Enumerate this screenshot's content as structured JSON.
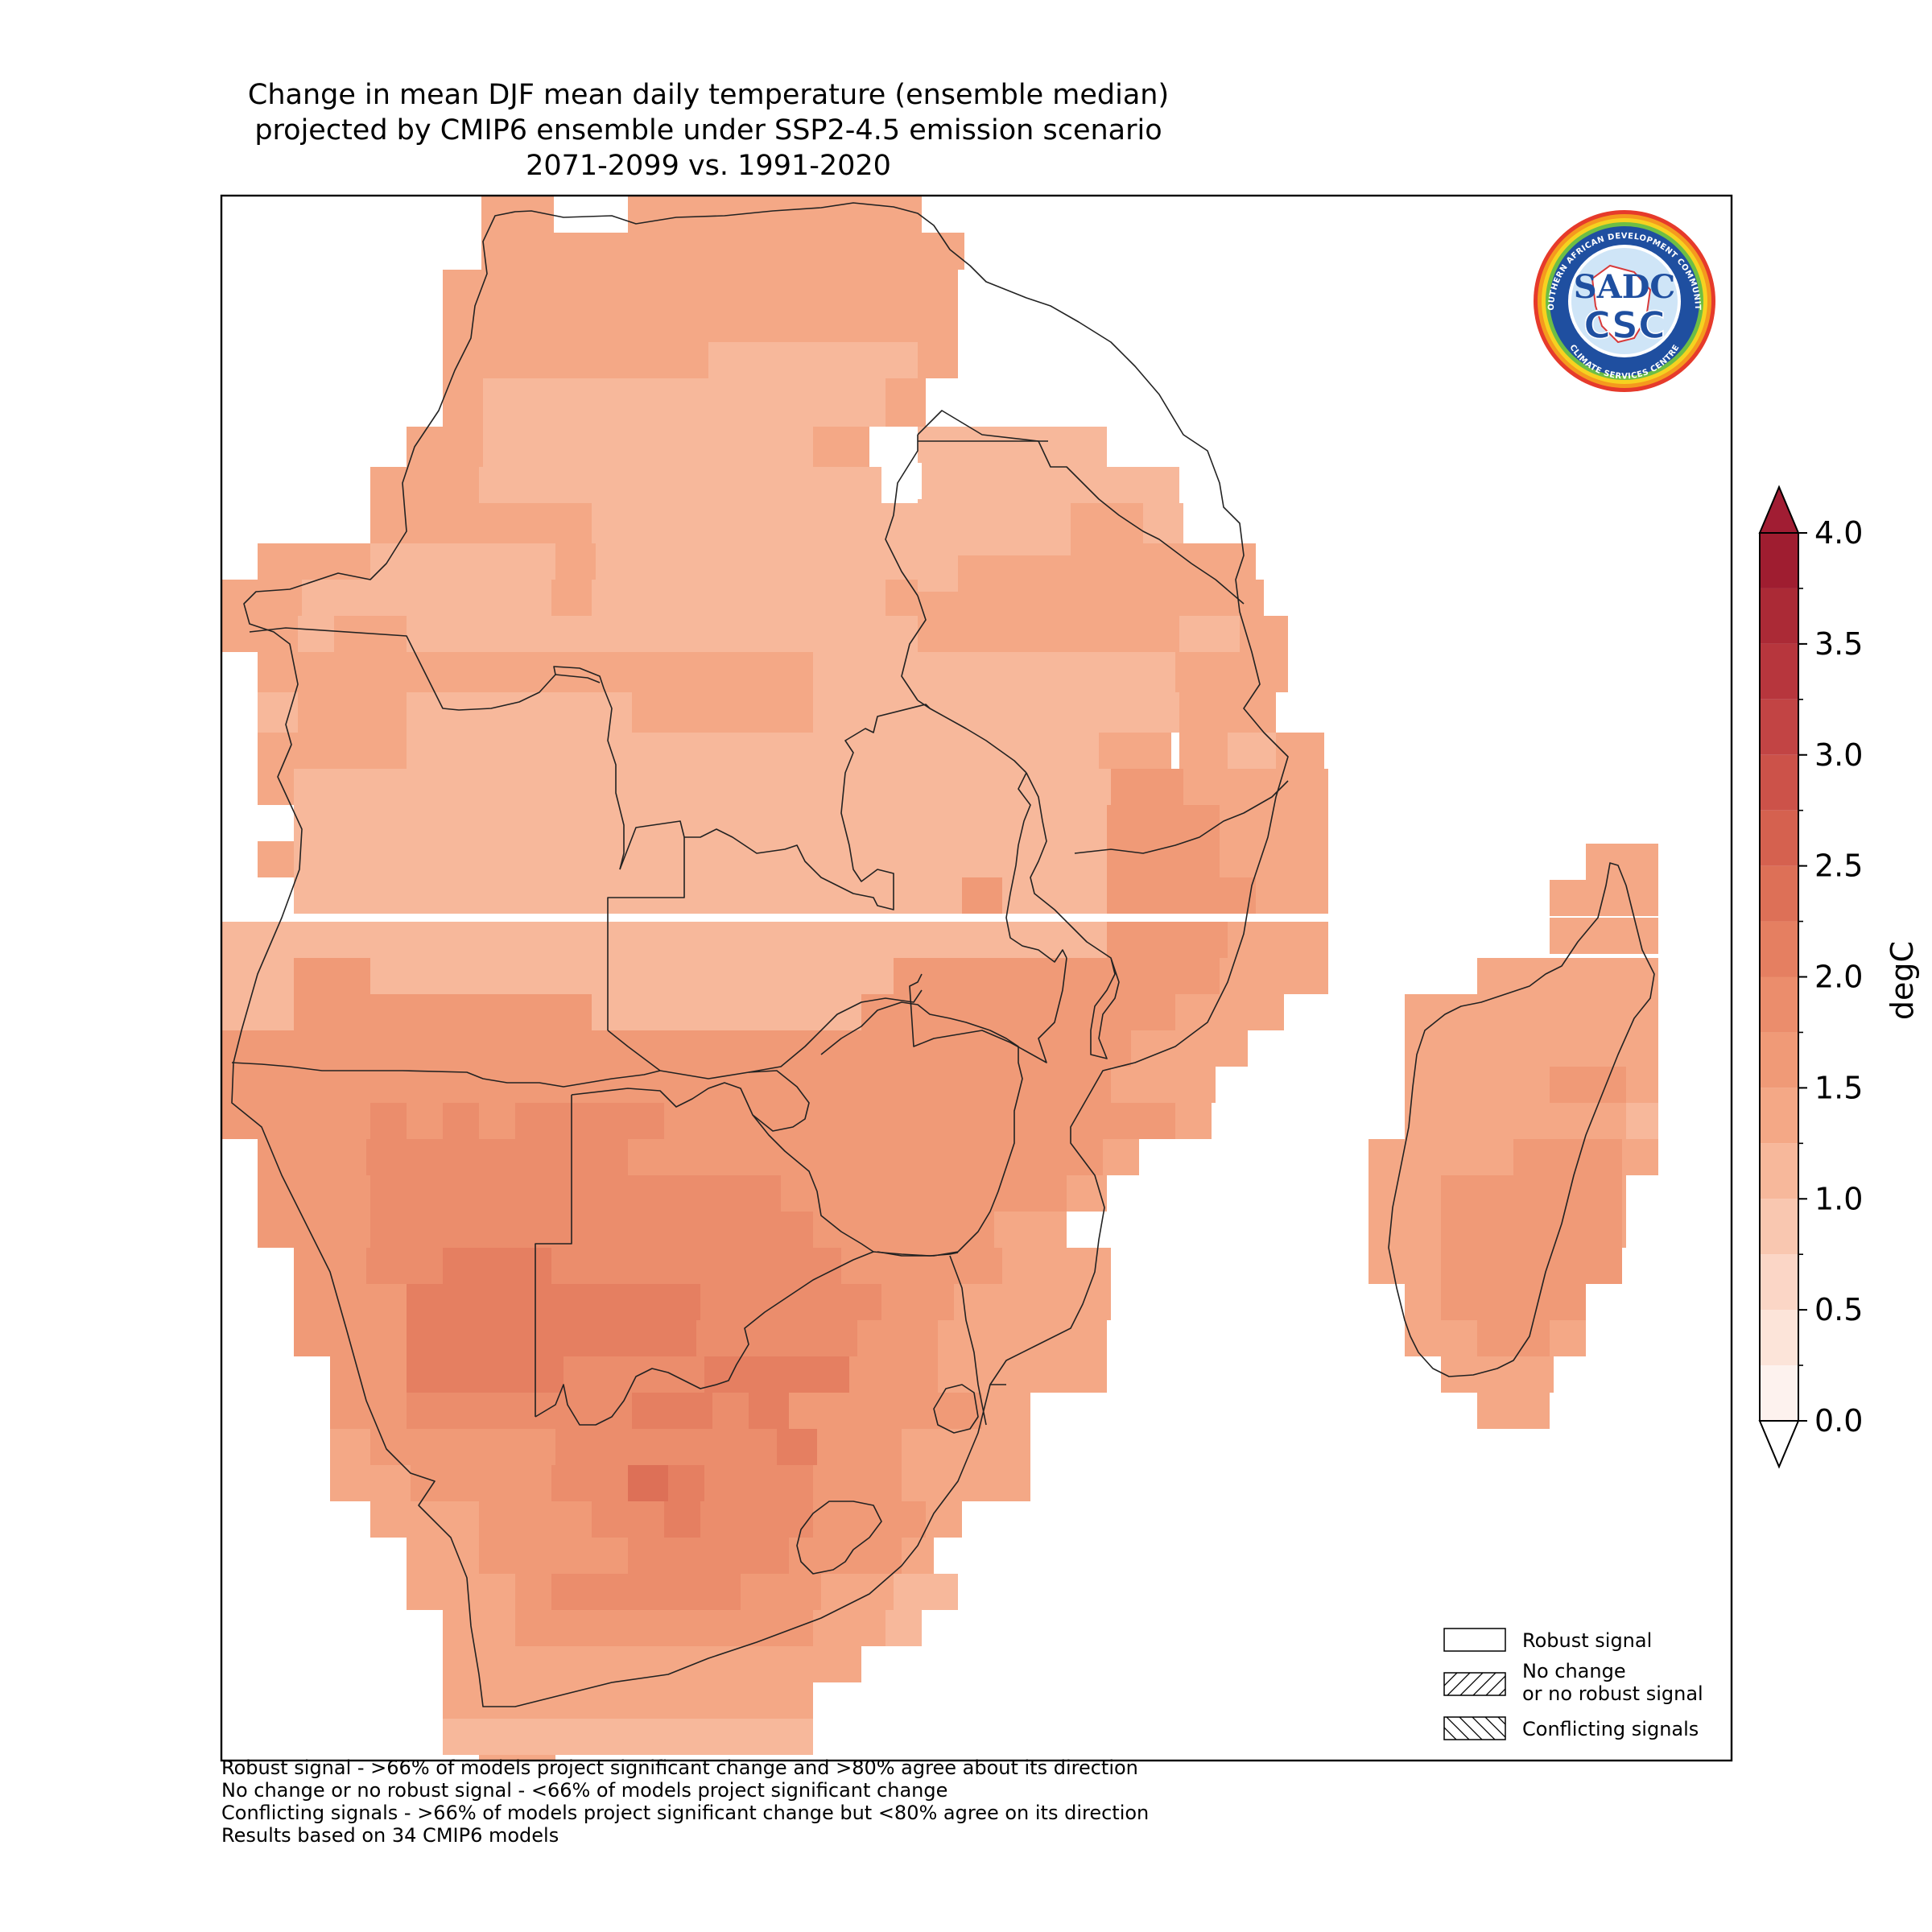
{
  "title": {
    "line1": "Change in mean DJF mean daily temperature (ensemble median)",
    "line2": "projected by CMIP6 ensemble under SSP2-4.5 emission scenario",
    "line3": "2071-2099 vs. 1991-2020"
  },
  "logo": {
    "text_main": "SADC",
    "text_sub": "CSC",
    "ring_text_top": "SOUTHERN AFRICAN DEVELOPMENT COMMUNITY",
    "ring_text_bottom": "CLIMATE SERVICES CENTRE"
  },
  "colorbar": {
    "label": "degC",
    "ticks": [
      "0.0",
      "0.5",
      "1.0",
      "1.5",
      "2.0",
      "2.5",
      "3.0",
      "3.5",
      "4.0"
    ],
    "min": 0.0,
    "max": 4.0,
    "step": 0.25,
    "extend": "both",
    "colors": [
      "#fdf1ec",
      "#fce4d9",
      "#fbd6c6",
      "#f9c7b0",
      "#f7b89b",
      "#f4a886",
      "#f09a77",
      "#eb8d6c",
      "#e57f61",
      "#dd7057",
      "#d5614f",
      "#cc5249",
      "#c24444",
      "#b7363d",
      "#ab2a36",
      "#9f1d30"
    ],
    "under_color": "#ffffff",
    "over_color": "#a11d33"
  },
  "legend": {
    "items": [
      {
        "label_lines": [
          "Robust signal"
        ],
        "pattern": "none"
      },
      {
        "label_lines": [
          "No change",
          "or no robust signal"
        ],
        "pattern": "forward-hatch"
      },
      {
        "label_lines": [
          "Conflicting signals"
        ],
        "pattern": "back-hatch"
      }
    ]
  },
  "footnotes": [
    "Robust signal - >66% of models project significant change and >80% agree about its direction",
    "No change or no robust signal - <66% of models project significant change",
    "Conflicting signals - >66% of models project significant change but <80% agree on its direction",
    "Results based on 34 CMIP6 models"
  ]
}
